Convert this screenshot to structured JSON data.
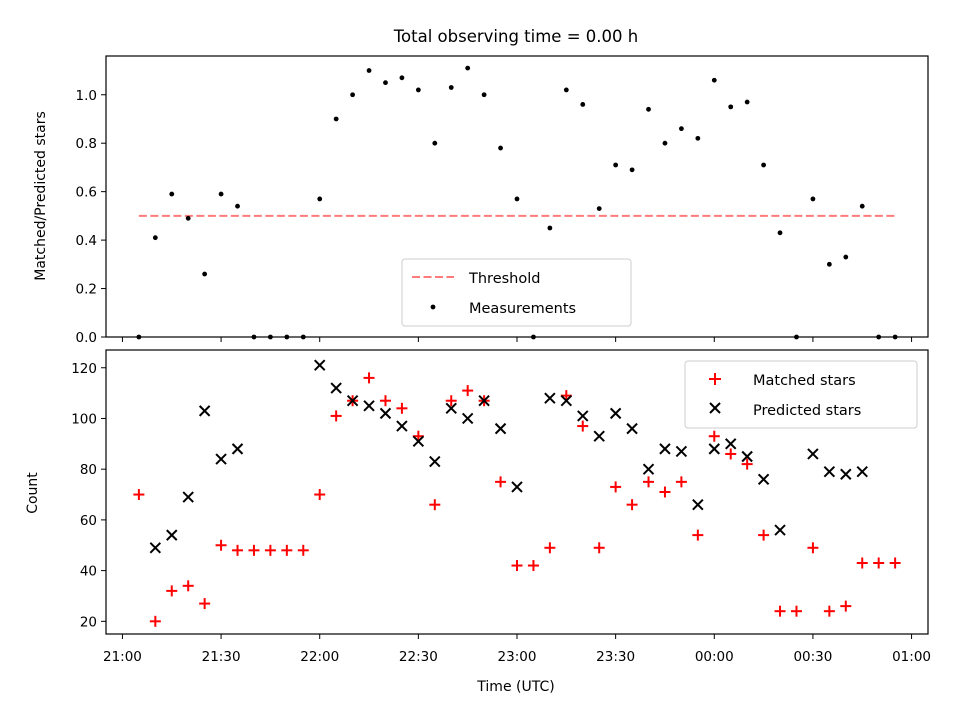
{
  "chart_data": [
    {
      "type": "scatter",
      "title": "Total observing time = 0.00 h",
      "xlabel": "",
      "ylabel": "Matched/Predicted stars",
      "x_domain": [
        "20:55",
        "01:05"
      ],
      "ylim": [
        0,
        1.16
      ],
      "yticks": [
        0.0,
        0.2,
        0.4,
        0.6,
        0.8,
        1.0
      ],
      "ytick_labels": [
        "0.0",
        "0.2",
        "0.4",
        "0.6",
        "0.8",
        "1.0"
      ],
      "legend_position": "lower-center",
      "series": [
        {
          "name": "Threshold",
          "kind": "line",
          "style": "dashed",
          "color": "#ff7b7b",
          "points": [
            [
              "21:05",
              0.5
            ],
            [
              "00:55",
              0.5
            ]
          ]
        },
        {
          "name": "Measurements",
          "kind": "scatter",
          "marker": "dot",
          "color": "#000000",
          "points": [
            [
              "21:05",
              0.0
            ],
            [
              "21:10",
              0.41
            ],
            [
              "21:15",
              0.59
            ],
            [
              "21:20",
              0.49
            ],
            [
              "21:25",
              0.26
            ],
            [
              "21:30",
              0.59
            ],
            [
              "21:35",
              0.54
            ],
            [
              "21:40",
              0.0
            ],
            [
              "21:45",
              0.0
            ],
            [
              "21:50",
              0.0
            ],
            [
              "21:55",
              0.0
            ],
            [
              "22:00",
              0.57
            ],
            [
              "22:05",
              0.9
            ],
            [
              "22:10",
              1.0
            ],
            [
              "22:15",
              1.1
            ],
            [
              "22:20",
              1.05
            ],
            [
              "22:25",
              1.07
            ],
            [
              "22:30",
              1.02
            ],
            [
              "22:35",
              0.8
            ],
            [
              "22:40",
              1.03
            ],
            [
              "22:45",
              1.11
            ],
            [
              "22:50",
              1.0
            ],
            [
              "22:55",
              0.78
            ],
            [
              "23:00",
              0.57
            ],
            [
              "23:05",
              0.0
            ],
            [
              "23:10",
              0.45
            ],
            [
              "23:15",
              1.02
            ],
            [
              "23:20",
              0.96
            ],
            [
              "23:25",
              0.53
            ],
            [
              "23:30",
              0.71
            ],
            [
              "23:35",
              0.69
            ],
            [
              "23:40",
              0.94
            ],
            [
              "23:45",
              0.8
            ],
            [
              "23:50",
              0.86
            ],
            [
              "23:55",
              0.82
            ],
            [
              "00:00",
              1.06
            ],
            [
              "00:05",
              0.95
            ],
            [
              "00:10",
              0.97
            ],
            [
              "00:15",
              0.71
            ],
            [
              "00:20",
              0.43
            ],
            [
              "00:25",
              0.0
            ],
            [
              "00:30",
              0.57
            ],
            [
              "00:35",
              0.3
            ],
            [
              "00:40",
              0.33
            ],
            [
              "00:45",
              0.54
            ],
            [
              "00:50",
              0.0
            ],
            [
              "00:55",
              0.0
            ]
          ]
        }
      ]
    },
    {
      "type": "scatter",
      "title": "",
      "xlabel": "Time (UTC)",
      "ylabel": "Count",
      "x_domain": [
        "20:55",
        "01:05"
      ],
      "xticks": [
        "21:00",
        "21:30",
        "22:00",
        "22:30",
        "23:00",
        "23:30",
        "00:00",
        "00:30",
        "01:00"
      ],
      "ylim": [
        15,
        127
      ],
      "yticks": [
        20,
        40,
        60,
        80,
        100,
        120
      ],
      "ytick_labels": [
        "20",
        "40",
        "60",
        "80",
        "100",
        "120"
      ],
      "legend_position": "upper-right",
      "series": [
        {
          "name": "Matched stars",
          "kind": "scatter",
          "marker": "plus",
          "color": "#ff0000",
          "points": [
            [
              "21:05",
              70
            ],
            [
              "21:10",
              20
            ],
            [
              "21:15",
              32
            ],
            [
              "21:20",
              34
            ],
            [
              "21:25",
              27
            ],
            [
              "21:30",
              50
            ],
            [
              "21:35",
              48
            ],
            [
              "21:40",
              48
            ],
            [
              "21:45",
              48
            ],
            [
              "21:50",
              48
            ],
            [
              "21:55",
              48
            ],
            [
              "22:00",
              70
            ],
            [
              "22:05",
              101
            ],
            [
              "22:10",
              107
            ],
            [
              "22:15",
              116
            ],
            [
              "22:20",
              107
            ],
            [
              "22:25",
              104
            ],
            [
              "22:30",
              93
            ],
            [
              "22:35",
              66
            ],
            [
              "22:40",
              107
            ],
            [
              "22:45",
              111
            ],
            [
              "22:50",
              107
            ],
            [
              "22:55",
              75
            ],
            [
              "23:00",
              42
            ],
            [
              "23:05",
              42
            ],
            [
              "23:10",
              49
            ],
            [
              "23:15",
              109
            ],
            [
              "23:20",
              97
            ],
            [
              "23:25",
              49
            ],
            [
              "23:30",
              73
            ],
            [
              "23:35",
              66
            ],
            [
              "23:40",
              75
            ],
            [
              "23:45",
              71
            ],
            [
              "23:50",
              75
            ],
            [
              "23:55",
              54
            ],
            [
              "00:00",
              93
            ],
            [
              "00:05",
              86
            ],
            [
              "00:10",
              82
            ],
            [
              "00:15",
              54
            ],
            [
              "00:20",
              24
            ],
            [
              "00:25",
              24
            ],
            [
              "00:30",
              49
            ],
            [
              "00:35",
              24
            ],
            [
              "00:40",
              26
            ],
            [
              "00:45",
              43
            ],
            [
              "00:50",
              43
            ],
            [
              "00:55",
              43
            ]
          ]
        },
        {
          "name": "Predicted stars",
          "kind": "scatter",
          "marker": "x",
          "color": "#000000",
          "points": [
            [
              "21:10",
              49
            ],
            [
              "21:15",
              54
            ],
            [
              "21:20",
              69
            ],
            [
              "21:25",
              103
            ],
            [
              "21:30",
              84
            ],
            [
              "21:35",
              88
            ],
            [
              "22:00",
              121
            ],
            [
              "22:05",
              112
            ],
            [
              "22:10",
              107
            ],
            [
              "22:15",
              105
            ],
            [
              "22:20",
              102
            ],
            [
              "22:25",
              97
            ],
            [
              "22:30",
              91
            ],
            [
              "22:35",
              83
            ],
            [
              "22:40",
              104
            ],
            [
              "22:45",
              100
            ],
            [
              "22:50",
              107
            ],
            [
              "22:55",
              96
            ],
            [
              "23:00",
              73
            ],
            [
              "23:10",
              108
            ],
            [
              "23:15",
              107
            ],
            [
              "23:20",
              101
            ],
            [
              "23:25",
              93
            ],
            [
              "23:30",
              102
            ],
            [
              "23:35",
              96
            ],
            [
              "23:40",
              80
            ],
            [
              "23:45",
              88
            ],
            [
              "23:50",
              87
            ],
            [
              "23:55",
              66
            ],
            [
              "00:00",
              88
            ],
            [
              "00:05",
              90
            ],
            [
              "00:10",
              85
            ],
            [
              "00:15",
              76
            ],
            [
              "00:20",
              56
            ],
            [
              "00:30",
              86
            ],
            [
              "00:35",
              79
            ],
            [
              "00:40",
              78
            ],
            [
              "00:45",
              79
            ]
          ]
        }
      ]
    }
  ]
}
